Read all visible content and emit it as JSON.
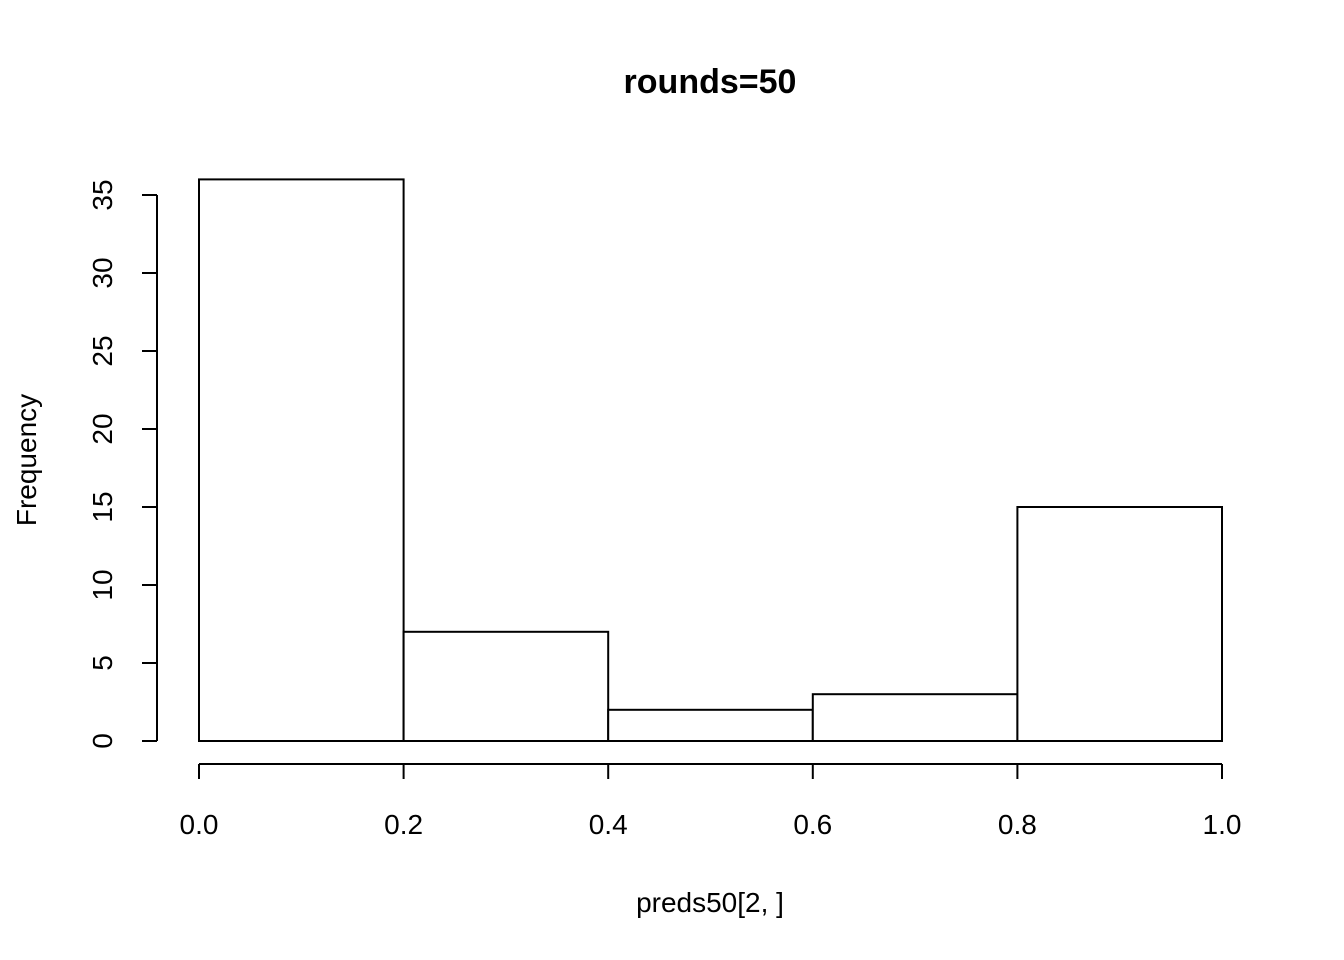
{
  "chart_data": {
    "type": "bar",
    "subtype": "histogram",
    "title": "rounds=50",
    "xlabel": "preds50[2, ]",
    "ylabel": "Frequency",
    "bins": [
      {
        "start": 0.0,
        "end": 0.2,
        "count": 36
      },
      {
        "start": 0.2,
        "end": 0.4,
        "count": 7
      },
      {
        "start": 0.4,
        "end": 0.6,
        "count": 2
      },
      {
        "start": 0.6,
        "end": 0.8,
        "count": 3
      },
      {
        "start": 0.8,
        "end": 1.0,
        "count": 15
      }
    ],
    "xlim": [
      0.0,
      1.0
    ],
    "ylim": [
      0,
      36
    ],
    "xticks": [
      "0.0",
      "0.2",
      "0.4",
      "0.6",
      "0.8",
      "1.0"
    ],
    "yticks": [
      "0",
      "5",
      "10",
      "15",
      "20",
      "25",
      "30",
      "35"
    ],
    "grid": false,
    "bar_fill": "#ffffff",
    "bar_stroke": "#000000"
  }
}
